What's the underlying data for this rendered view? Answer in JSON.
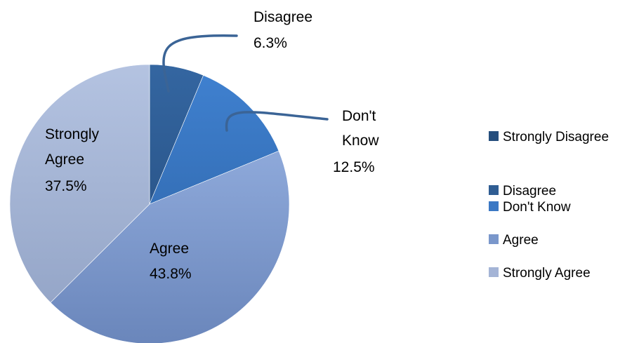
{
  "chart_data": {
    "type": "pie",
    "title": "",
    "categories": [
      "Strongly Disagree",
      "Disagree",
      "Don't Know",
      "Agree",
      "Strongly Agree"
    ],
    "values": [
      0,
      6.3,
      12.5,
      43.8,
      37.5
    ],
    "unit": "%",
    "slices": [
      {
        "label": "Strongly Disagree",
        "value": 0,
        "value_label": "",
        "label_lines": [],
        "color": "#254e7d"
      },
      {
        "label": "Disagree",
        "value": 6.3,
        "value_label": "6.3%",
        "label_lines": [
          "Disagree"
        ],
        "color": "#2f5d93"
      },
      {
        "label": "Don't Know",
        "value": 12.5,
        "value_label": "12.5%",
        "label_lines": [
          "Don't",
          "Know"
        ],
        "color": "#3b78c4"
      },
      {
        "label": "Agree",
        "value": 43.8,
        "value_label": "43.8%",
        "label_lines": [
          "Agree"
        ],
        "color": "#7a97cb"
      },
      {
        "label": "Strongly Agree",
        "value": 37.5,
        "value_label": "37.5%",
        "label_lines": [
          "Strongly",
          "Agree"
        ],
        "color": "#a4b4d6"
      }
    ],
    "legend": {
      "position": "right",
      "entries": [
        "Strongly Disagree",
        "Disagree",
        "Don't Know",
        "Agree",
        "Strongly Agree"
      ]
    }
  }
}
